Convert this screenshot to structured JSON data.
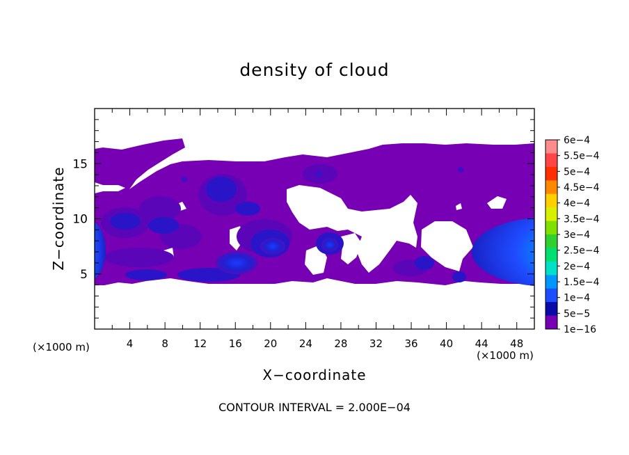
{
  "chart_data": {
    "type": "heatmap",
    "title": "density of cloud",
    "xlabel": "X−coordinate",
    "ylabel": "Z−coordinate",
    "x_unit": "(×1000 m)",
    "xlim": [
      0,
      50
    ],
    "ylim": [
      0,
      20
    ],
    "x_ticks": [
      4,
      8,
      12,
      16,
      20,
      24,
      28,
      32,
      36,
      40,
      44,
      48
    ],
    "y_ticks": [
      5,
      10,
      15
    ],
    "footer": "CONTOUR INTERVAL = 2.000E−04",
    "colorbar": {
      "labels": [
        "6e−4",
        "5.5e−4",
        "5e−4",
        "4.5e−4",
        "4e−4",
        "3.5e−4",
        "3e−4",
        "2.5e−4",
        "2e−4",
        "1.5e−4",
        "1e−4",
        "5e−5",
        "1e−16"
      ],
      "colors": [
        "#ff8c8c",
        "#ff4545",
        "#ff2e00",
        "#ff8800",
        "#ffd000",
        "#d8f000",
        "#80e000",
        "#30d030",
        "#00e070",
        "#00e0c8",
        "#0096ff",
        "#1e4cff",
        "#0a0aa8",
        "#7800b4"
      ]
    },
    "cloud_layer": {
      "z_range_approx": [
        4.3,
        16.5
      ],
      "max_density_region": "right edge, x ≈ 44–50, z ≈ 5–9"
    }
  }
}
